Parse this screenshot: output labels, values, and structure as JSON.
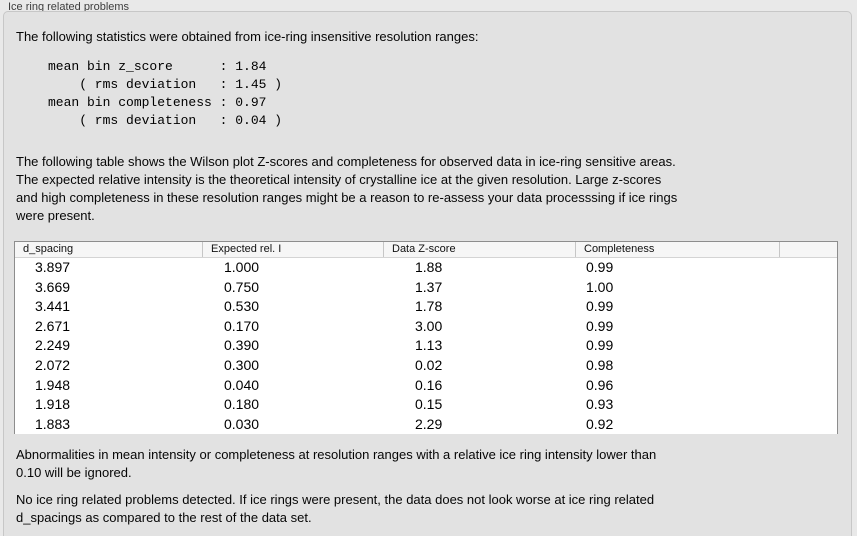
{
  "panel": {
    "title": "Ice ring related problems"
  },
  "intro": "The following statistics were obtained from ice-ring insensitive resolution ranges:",
  "stats_block": {
    "lines": [
      "mean bin z_score      : 1.84",
      "    ( rms deviation   : 1.45 )",
      "mean bin completeness : 0.97",
      "    ( rms deviation   : 0.04 )"
    ],
    "mean_bin_z_score": "1.84",
    "z_score_rms_deviation": "1.45",
    "mean_bin_completeness": "0.97",
    "completeness_rms_deviation": "0.04"
  },
  "table_description": {
    "lines": [
      "The following table shows the Wilson plot Z-scores and completeness for observed data in ice-ring sensitive areas.",
      "The expected relative intensity is the theoretical intensity of crystalline ice at the given resolution. Large z-scores",
      "and high completeness in these resolution ranges might be a reason to re-assess your data processsing if ice rings",
      "were present."
    ]
  },
  "table": {
    "columns": [
      "d_spacing",
      "Expected rel. I",
      "Data Z-score",
      "Completeness"
    ],
    "rows": [
      [
        "3.897",
        "1.000",
        "1.88",
        "0.99"
      ],
      [
        "3.669",
        "0.750",
        "1.37",
        "1.00"
      ],
      [
        "3.441",
        "0.530",
        "1.78",
        "0.99"
      ],
      [
        "2.671",
        "0.170",
        "3.00",
        "0.99"
      ],
      [
        "2.249",
        "0.390",
        "1.13",
        "0.99"
      ],
      [
        "2.072",
        "0.300",
        "0.02",
        "0.98"
      ],
      [
        "1.948",
        "0.040",
        "0.16",
        "0.96"
      ],
      [
        "1.918",
        "0.180",
        "0.15",
        "0.93"
      ],
      [
        "1.883",
        "0.030",
        "2.29",
        "0.92"
      ]
    ]
  },
  "ignore_note": {
    "lines": [
      "Abnormalities in mean intensity or completeness at resolution ranges with a relative ice ring intensity lower than",
      "0.10 will be ignored."
    ]
  },
  "conclusion": {
    "lines": [
      "No ice ring related problems detected. If ice rings were present, the data does not look worse at ice ring related",
      "d_spacings as compared to the rest of the data set."
    ]
  },
  "colors": {
    "page_background": "#e9e9e9",
    "panel_background": "#e2e2e2",
    "panel_border": "#c7c7c7",
    "table_background": "#ffffff",
    "table_border": "#8d8d8d",
    "header_background": "#f6f6f6",
    "text": "#000000"
  }
}
